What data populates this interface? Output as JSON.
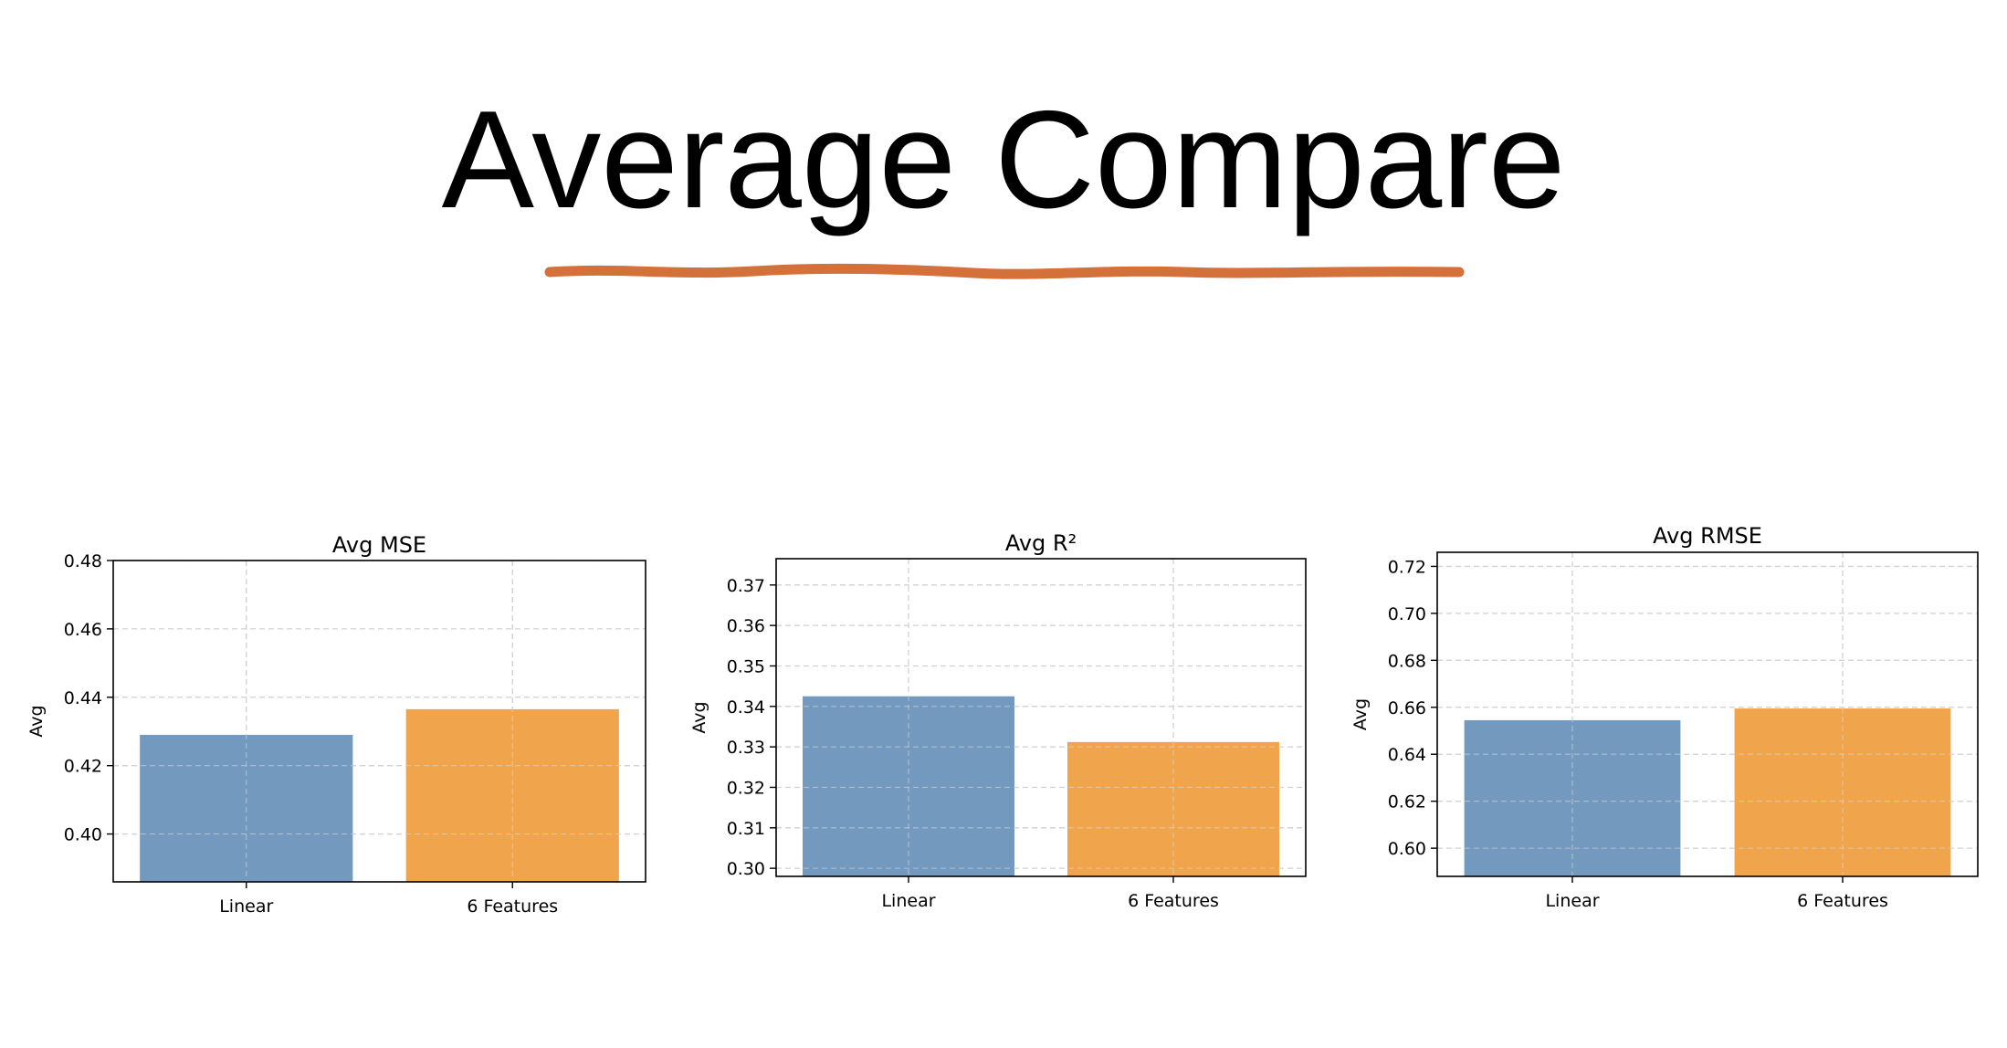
{
  "slide": {
    "title": "Average Compare",
    "accent_color": "#d4703a"
  },
  "chart_data": [
    {
      "type": "bar",
      "title": "Avg MSE",
      "xlabel": "",
      "ylabel": "Avg",
      "categories": [
        "Linear",
        "6 Features"
      ],
      "values": [
        0.429,
        0.4365
      ],
      "colors": [
        "#7399be",
        "#f0a54c"
      ],
      "ylim": [
        0.386,
        0.48
      ],
      "yticks": [
        0.4,
        0.42,
        0.44,
        0.46,
        0.48
      ],
      "ytick_labels": [
        "0.40",
        "0.42",
        "0.44",
        "0.46",
        "0.48"
      ],
      "grid": true
    },
    {
      "type": "bar",
      "title": "Avg R²",
      "xlabel": "",
      "ylabel": "Avg",
      "categories": [
        "Linear",
        "6 Features"
      ],
      "values": [
        0.3425,
        0.3312
      ],
      "colors": [
        "#7399be",
        "#f0a54c"
      ],
      "ylim": [
        0.298,
        0.3765
      ],
      "yticks": [
        0.3,
        0.31,
        0.32,
        0.33,
        0.34,
        0.35,
        0.36,
        0.37
      ],
      "ytick_labels": [
        "0.30",
        "0.31",
        "0.32",
        "0.33",
        "0.34",
        "0.35",
        "0.36",
        "0.37"
      ],
      "grid": true
    },
    {
      "type": "bar",
      "title": "Avg RMSE",
      "xlabel": "",
      "ylabel": "Avg",
      "categories": [
        "Linear",
        "6 Features"
      ],
      "values": [
        0.6545,
        0.6595
      ],
      "colors": [
        "#7399be",
        "#f0a54c"
      ],
      "ylim": [
        0.588,
        0.726
      ],
      "yticks": [
        0.6,
        0.62,
        0.64,
        0.66,
        0.68,
        0.7,
        0.72
      ],
      "ytick_labels": [
        "0.60",
        "0.62",
        "0.64",
        "0.66",
        "0.68",
        "0.70",
        "0.72"
      ],
      "grid": true
    }
  ]
}
